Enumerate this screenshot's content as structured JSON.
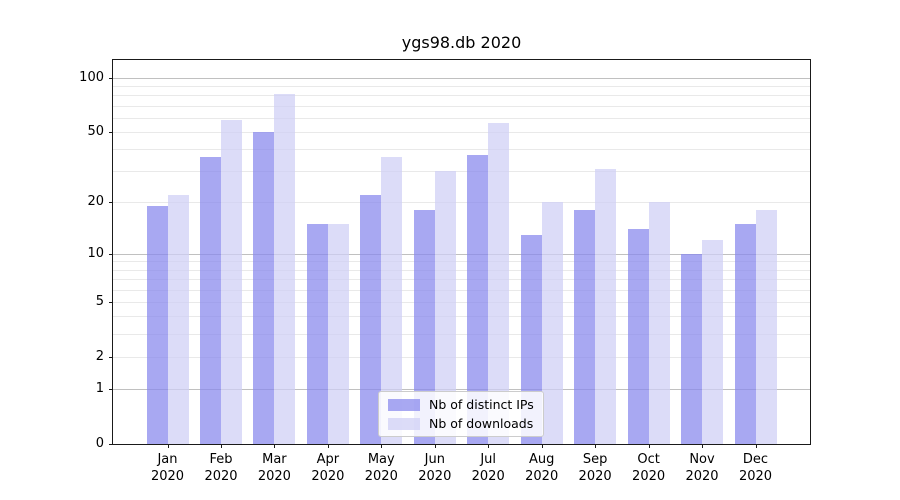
{
  "chart_data": {
    "type": "bar",
    "title": "ygs98.db 2020",
    "x": {
      "categories": [
        "Jan",
        "Feb",
        "Mar",
        "Apr",
        "May",
        "Jun",
        "Jul",
        "Aug",
        "Sep",
        "Oct",
        "Nov",
        "Dec"
      ],
      "year": "2020"
    },
    "series": [
      {
        "name": "Nb of distinct IPs",
        "fill": "rgba(134,134,237,0.72)",
        "displayed_hex": "#a8a8f2",
        "values": [
          19,
          36,
          50,
          15,
          22,
          18,
          37,
          13,
          18,
          14,
          10,
          15
        ]
      },
      {
        "name": "Nb of downloads",
        "fill": "rgba(206,206,245,0.72)",
        "displayed_hex": "#dcdcf8",
        "values": [
          22,
          58,
          81,
          15,
          36,
          30,
          56,
          20,
          31,
          20,
          12,
          18
        ]
      }
    ],
    "y_axis": {
      "scale": "log1p",
      "max": 125,
      "ticks": [
        0,
        1,
        2,
        5,
        10,
        20,
        50,
        100
      ],
      "tick_labels": [
        "0",
        "1",
        "2",
        "5",
        "10",
        "20",
        "50",
        "100"
      ],
      "major_gridlines": [
        1,
        10,
        100
      ],
      "minor_gridlines": [
        2,
        3,
        4,
        5,
        6,
        7,
        8,
        9,
        20,
        30,
        40,
        50,
        60,
        70,
        80,
        90
      ]
    },
    "legend": {
      "position": "lower-center",
      "entries": [
        "Nb of distinct IPs",
        "Nb of downloads"
      ]
    },
    "colors": {
      "background": "#ffffff",
      "spine": "#1a1a1a",
      "major_grid": "#c0c0c0",
      "minor_grid": "#e9e9e9",
      "text": "#000000",
      "legend_border": "#cccccc"
    }
  }
}
